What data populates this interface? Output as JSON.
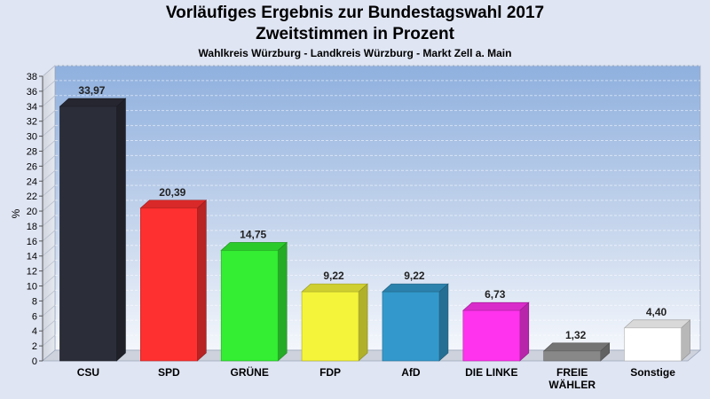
{
  "title": "Vorläufiges Ergebnis zur Bundestagswahl 2017",
  "subtitle": "Zweitstimmen in Prozent",
  "subtitle2": "Wahlkreis Würzburg - Landkreis Würzburg - Markt Zell a. Main",
  "chart_data": {
    "type": "bar",
    "categories": [
      "CSU",
      "SPD",
      "GRÜNE",
      "FDP",
      "AfD",
      "DIE LINKE",
      "FREIE WÄHLER",
      "Sonstige"
    ],
    "category_lines": [
      [
        "CSU"
      ],
      [
        "SPD"
      ],
      [
        "GRÜNE"
      ],
      [
        "FDP"
      ],
      [
        "AfD"
      ],
      [
        "DIE LINKE"
      ],
      [
        "FREIE",
        "WÄHLER"
      ],
      [
        "Sonstige"
      ]
    ],
    "values": [
      33.97,
      20.39,
      14.75,
      9.22,
      9.22,
      6.73,
      1.32,
      4.4
    ],
    "labels": [
      "33,97",
      "20,39",
      "14,75",
      "9,22",
      "9,22",
      "6,73",
      "1,32",
      "4,40"
    ],
    "colors": [
      "#2b2d38",
      "#ff3030",
      "#33ee33",
      "#f4f43a",
      "#3399cc",
      "#ff33ee",
      "#888888",
      "#ffffff"
    ],
    "ylabel": "%",
    "ylim": [
      0,
      38
    ],
    "yticks": [
      0,
      2,
      4,
      6,
      8,
      10,
      12,
      14,
      16,
      18,
      20,
      22,
      24,
      26,
      28,
      30,
      32,
      34,
      36,
      38
    ],
    "grid": true,
    "style": "3d"
  }
}
